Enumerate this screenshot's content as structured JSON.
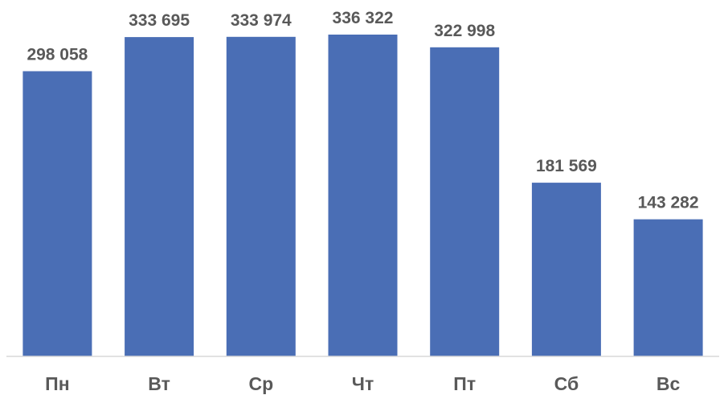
{
  "chart_data": {
    "type": "bar",
    "categories": [
      "Пн",
      "Вт",
      "Ср",
      "Чт",
      "Пт",
      "Сб",
      "Вс"
    ],
    "values": [
      298058,
      333695,
      333974,
      336322,
      322998,
      181569,
      143282
    ],
    "value_labels": [
      "298 058",
      "333 695",
      "333 974",
      "336 322",
      "322 998",
      "181 569",
      "143 282"
    ],
    "title": "",
    "xlabel": "",
    "ylabel": "",
    "ylim": [
      0,
      400000
    ],
    "grid": false,
    "legend": "none",
    "colors": {
      "bar": "#4a6eb5",
      "axis": "#d9d9d9",
      "text": "#595959"
    }
  }
}
